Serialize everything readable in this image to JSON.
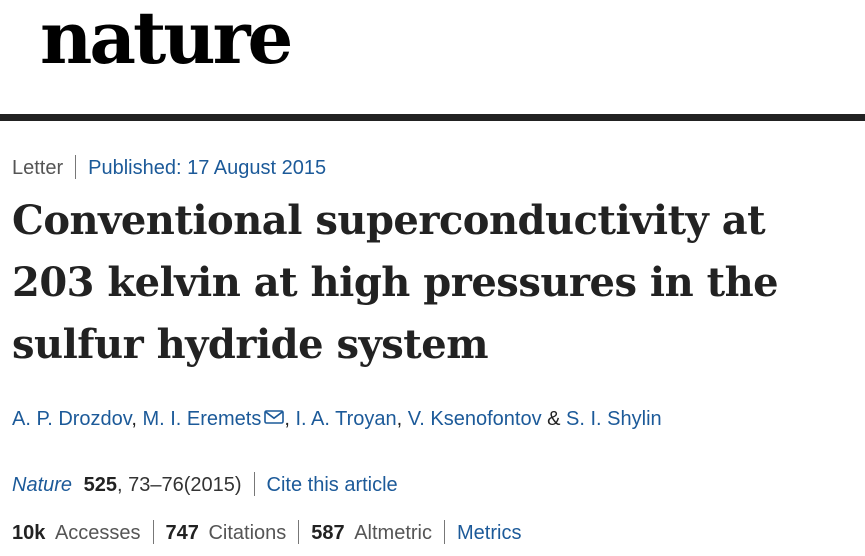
{
  "header": {
    "logo_text": "nature"
  },
  "article": {
    "type": "Letter",
    "published": "Published: 17 August 2015",
    "title": "Conventional superconductivity at 203 kelvin at high pressures in the sulfur hydride system",
    "authors": [
      "A. P. Drozdov",
      "M. I. Eremets",
      "I. A. Troyan",
      "V. Ksenofontov",
      "S. I. Shylin"
    ],
    "author_sep": ", ",
    "author_last_sep": " & ",
    "corresponding_icon": "envelope-icon"
  },
  "citation": {
    "journal": "Nature",
    "volume": "525",
    "pages_year": ", 73–76(2015)",
    "cite_label": "Cite this article"
  },
  "metrics": {
    "accesses_value": "10k",
    "accesses_label": "Accesses",
    "citations_value": "747",
    "citations_label": "Citations",
    "altmetric_value": "587",
    "altmetric_label": "Altmetric",
    "metrics_link": "Metrics"
  },
  "colors": {
    "link": "#1c5a99",
    "text": "#222222",
    "muted": "#555555",
    "rule": "#222222"
  }
}
